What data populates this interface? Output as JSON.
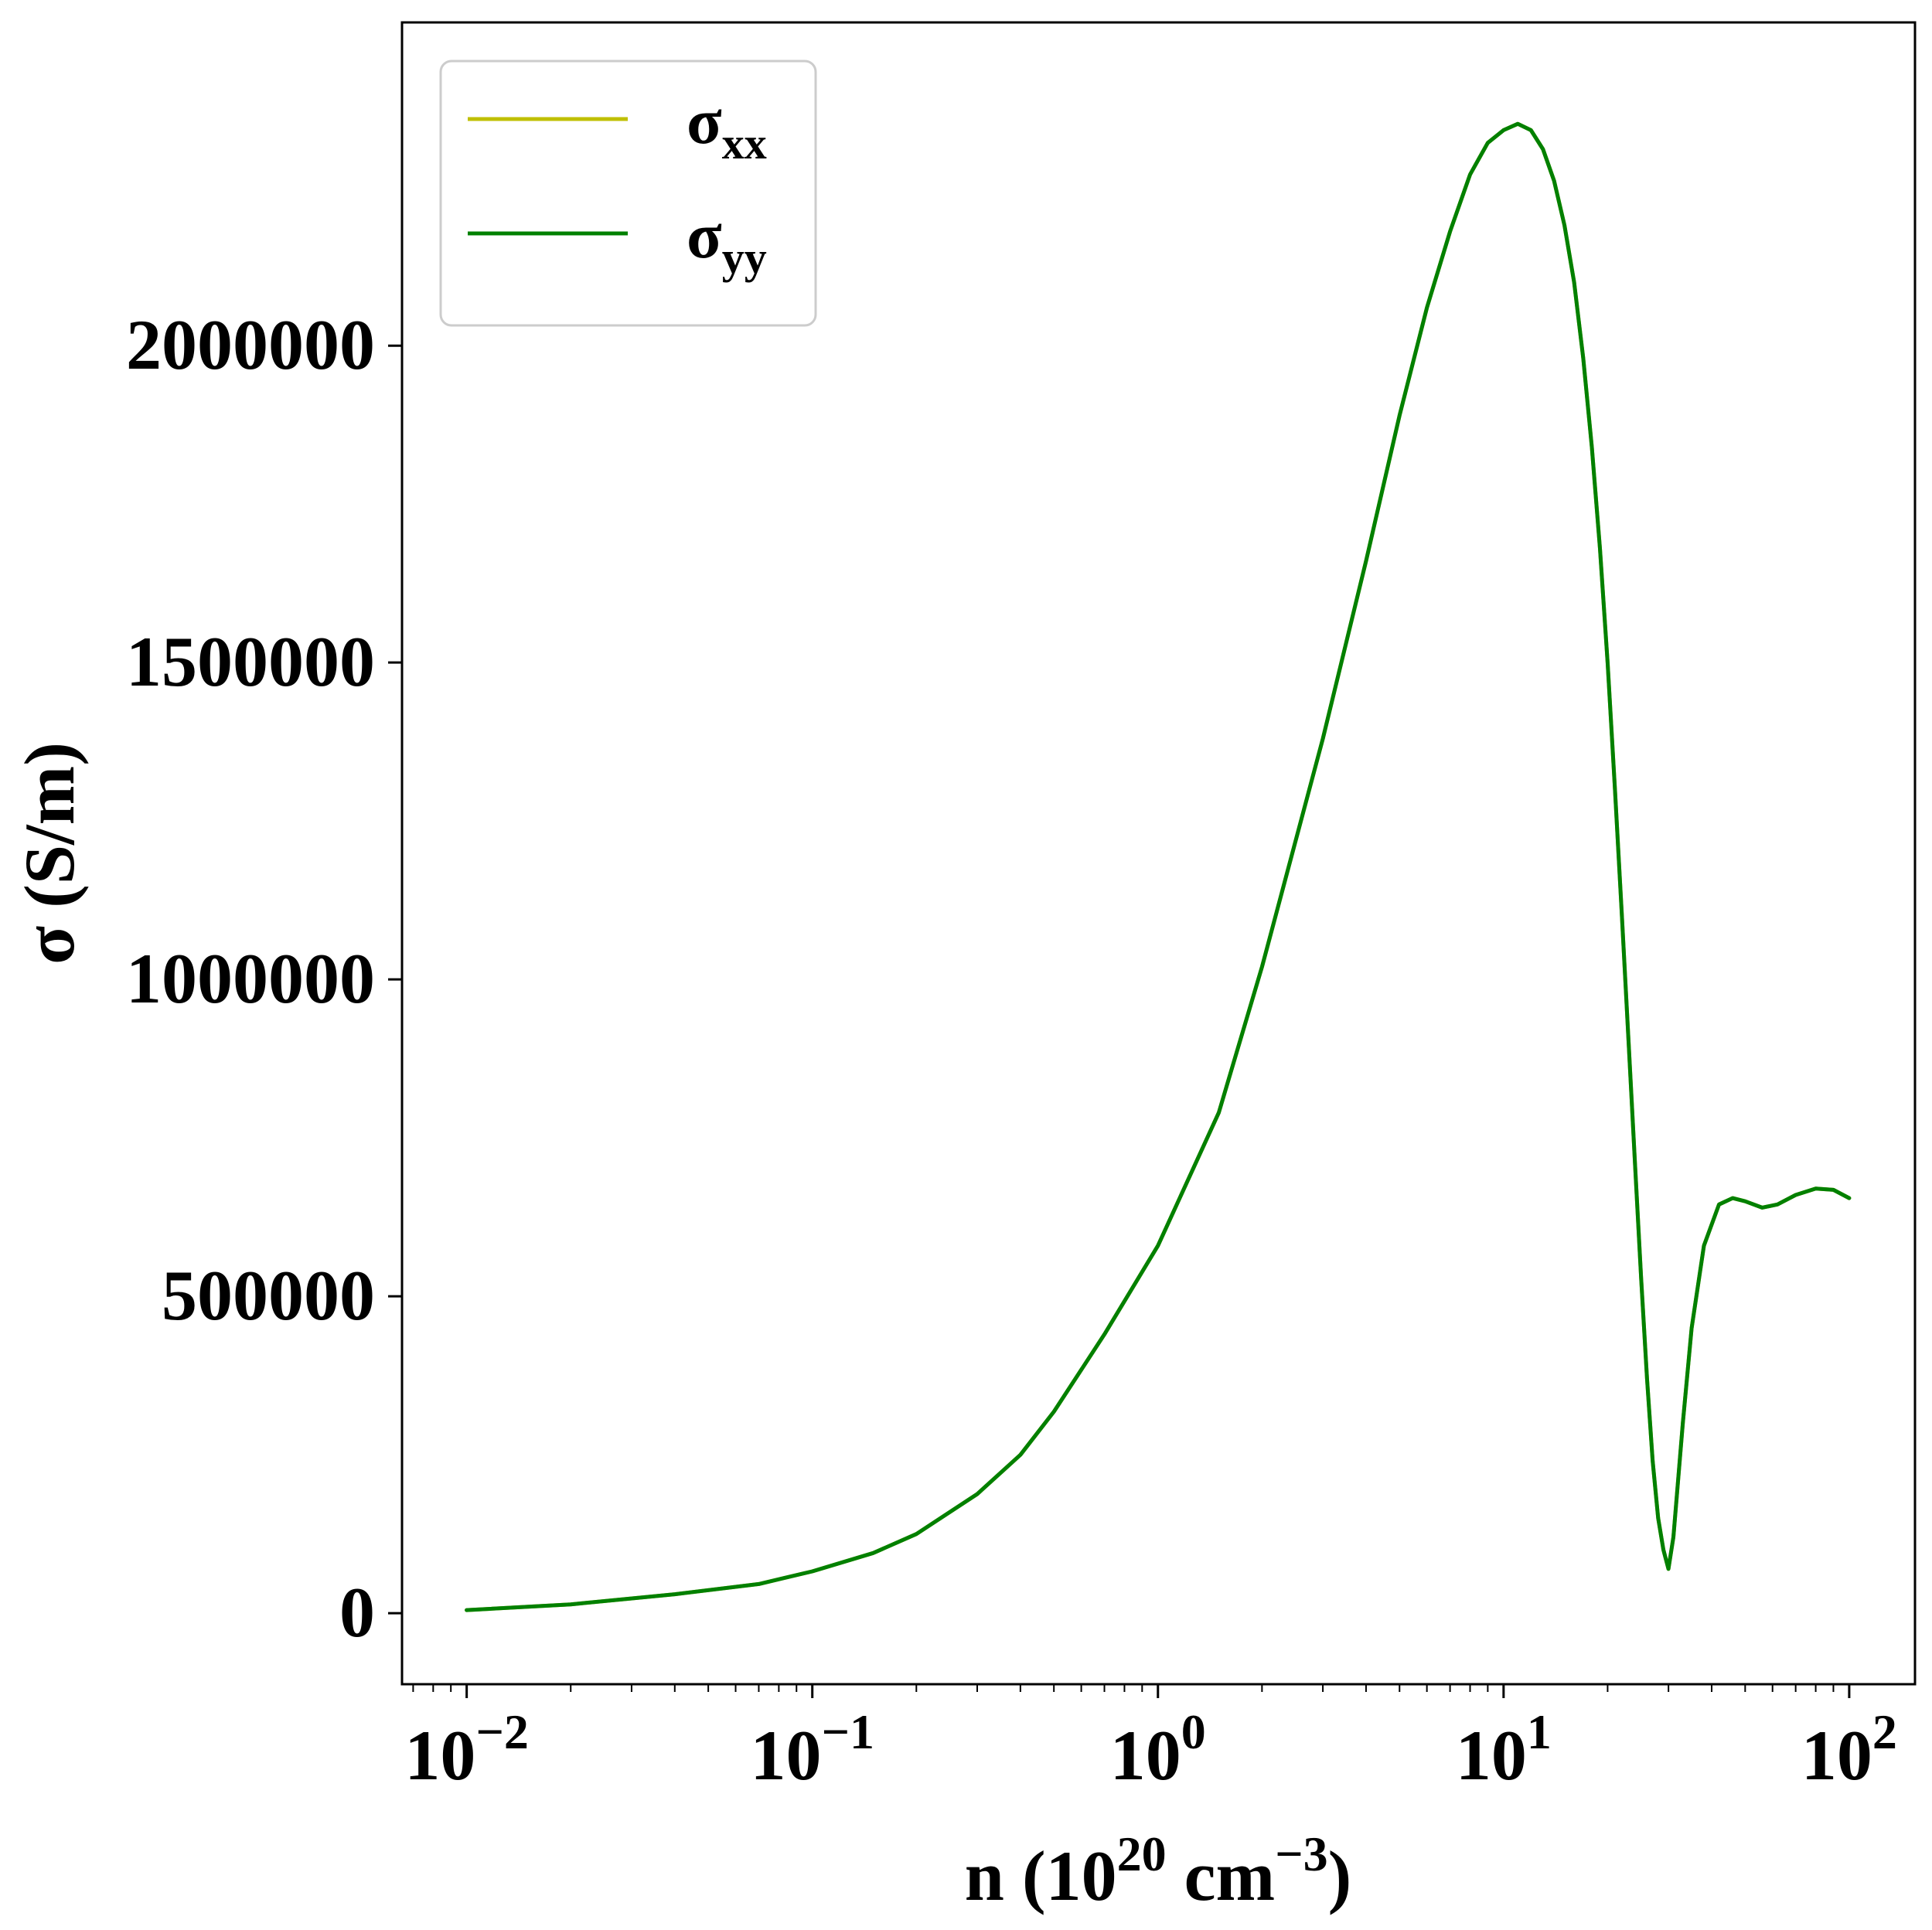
{
  "chart_data": {
    "type": "line",
    "title": "",
    "xlabel": {
      "base": "n (10",
      "exp1": "20",
      "mid": " cm",
      "exp2": "−3",
      "end": ")"
    },
    "ylabel": "σ (S/m)",
    "x_scale": "log",
    "xlim": [
      0.0065,
      155
    ],
    "ylim": [
      -112000,
      2510000
    ],
    "grid": false,
    "legend_position": "upper-left",
    "x_ticks": [
      {
        "value": 0.01,
        "base": "10",
        "exp": "−2"
      },
      {
        "value": 0.1,
        "base": "10",
        "exp": "−1"
      },
      {
        "value": 1,
        "base": "10",
        "exp": "0"
      },
      {
        "value": 10,
        "base": "10",
        "exp": "1"
      },
      {
        "value": 100,
        "base": "10",
        "exp": "2"
      }
    ],
    "y_ticks": [
      {
        "value": 0,
        "label": "0"
      },
      {
        "value": 500000,
        "label": "500000"
      },
      {
        "value": 1000000,
        "label": "1000000"
      },
      {
        "value": 1500000,
        "label": "1500000"
      },
      {
        "value": 2000000,
        "label": "2000000"
      }
    ],
    "series": [
      {
        "name": "σxx",
        "name_base": "σ",
        "name_sub": "xx",
        "color": "#bfbf00",
        "points": [
          [
            0.01,
            5000
          ],
          [
            0.02,
            14000
          ],
          [
            0.04,
            30000
          ],
          [
            0.07,
            46000
          ],
          [
            0.1,
            66000
          ],
          [
            0.15,
            95000
          ],
          [
            0.2,
            125000
          ],
          [
            0.3,
            188000
          ],
          [
            0.4,
            250000
          ],
          [
            0.5,
            318000
          ],
          [
            0.7,
            440000
          ],
          [
            1.0,
            580000
          ],
          [
            1.5,
            790000
          ],
          [
            2.0,
            1020000
          ],
          [
            3.0,
            1380000
          ],
          [
            4.0,
            1660000
          ],
          [
            5.0,
            1890000
          ],
          [
            6.0,
            2060000
          ],
          [
            7.0,
            2180000
          ],
          [
            8.0,
            2270000
          ],
          [
            9.0,
            2320000
          ],
          [
            10.0,
            2340000
          ],
          [
            11.0,
            2350000
          ],
          [
            12.0,
            2340000
          ],
          [
            13.0,
            2310000
          ],
          [
            14.0,
            2260000
          ],
          [
            15.0,
            2190000
          ],
          [
            16.0,
            2100000
          ],
          [
            17.0,
            1980000
          ],
          [
            18.0,
            1840000
          ],
          [
            19.0,
            1680000
          ],
          [
            20.0,
            1500000
          ],
          [
            21.0,
            1300000
          ],
          [
            22.0,
            1100000
          ],
          [
            23.0,
            900000
          ],
          [
            24.0,
            710000
          ],
          [
            25.0,
            530000
          ],
          [
            26.0,
            370000
          ],
          [
            27.0,
            240000
          ],
          [
            28.0,
            150000
          ],
          [
            29.0,
            100000
          ],
          [
            30.0,
            70000
          ],
          [
            31.0,
            120000
          ],
          [
            33.0,
            300000
          ],
          [
            35.0,
            450000
          ],
          [
            38.0,
            580000
          ],
          [
            42.0,
            645000
          ],
          [
            46.0,
            655000
          ],
          [
            50.0,
            650000
          ],
          [
            56.0,
            640000
          ],
          [
            62.0,
            645000
          ],
          [
            70.0,
            660000
          ],
          [
            80.0,
            670000
          ],
          [
            90.0,
            668000
          ],
          [
            100.0,
            655000
          ]
        ]
      },
      {
        "name": "σyy",
        "name_base": "σ",
        "name_sub": "yy",
        "color": "#008000",
        "points": [
          [
            0.01,
            5000
          ],
          [
            0.02,
            14000
          ],
          [
            0.04,
            30000
          ],
          [
            0.07,
            46000
          ],
          [
            0.1,
            66000
          ],
          [
            0.15,
            95000
          ],
          [
            0.2,
            125000
          ],
          [
            0.3,
            188000
          ],
          [
            0.4,
            250000
          ],
          [
            0.5,
            318000
          ],
          [
            0.7,
            440000
          ],
          [
            1.0,
            580000
          ],
          [
            1.5,
            790000
          ],
          [
            2.0,
            1020000
          ],
          [
            3.0,
            1380000
          ],
          [
            4.0,
            1660000
          ],
          [
            5.0,
            1890000
          ],
          [
            6.0,
            2060000
          ],
          [
            7.0,
            2180000
          ],
          [
            8.0,
            2270000
          ],
          [
            9.0,
            2320000
          ],
          [
            10.0,
            2340000
          ],
          [
            11.0,
            2350000
          ],
          [
            12.0,
            2340000
          ],
          [
            13.0,
            2310000
          ],
          [
            14.0,
            2260000
          ],
          [
            15.0,
            2190000
          ],
          [
            16.0,
            2100000
          ],
          [
            17.0,
            1980000
          ],
          [
            18.0,
            1840000
          ],
          [
            19.0,
            1680000
          ],
          [
            20.0,
            1500000
          ],
          [
            21.0,
            1300000
          ],
          [
            22.0,
            1100000
          ],
          [
            23.0,
            900000
          ],
          [
            24.0,
            710000
          ],
          [
            25.0,
            530000
          ],
          [
            26.0,
            370000
          ],
          [
            27.0,
            240000
          ],
          [
            28.0,
            150000
          ],
          [
            29.0,
            100000
          ],
          [
            30.0,
            70000
          ],
          [
            31.0,
            120000
          ],
          [
            33.0,
            300000
          ],
          [
            35.0,
            450000
          ],
          [
            38.0,
            580000
          ],
          [
            42.0,
            645000
          ],
          [
            46.0,
            655000
          ],
          [
            50.0,
            650000
          ],
          [
            56.0,
            640000
          ],
          [
            62.0,
            645000
          ],
          [
            70.0,
            660000
          ],
          [
            80.0,
            670000
          ],
          [
            90.0,
            668000
          ],
          [
            100.0,
            655000
          ]
        ]
      }
    ]
  }
}
